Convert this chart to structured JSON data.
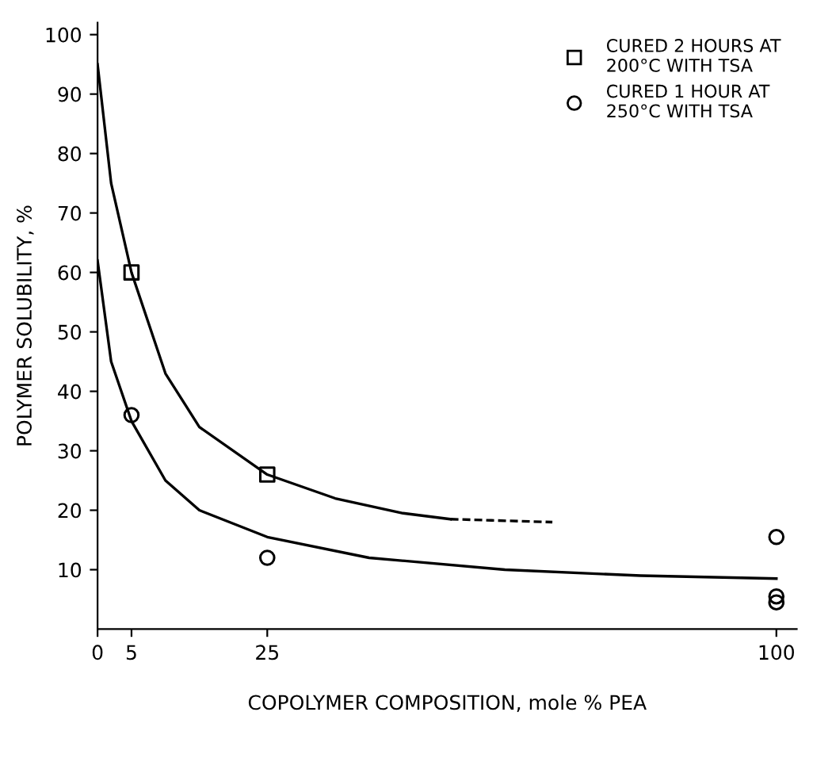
{
  "chart_data": {
    "type": "scatter",
    "xlabel": "COPOLYMER COMPOSITION, mole % PEA",
    "ylabel": "POLYMER SOLUBILITY, %",
    "xlim": [
      0,
      103
    ],
    "ylim": [
      0,
      102
    ],
    "xticks": [
      0,
      5,
      25,
      100
    ],
    "yticks": [
      10,
      20,
      30,
      40,
      50,
      60,
      70,
      80,
      90,
      100
    ],
    "grid": false,
    "legend": "top right",
    "series": [
      {
        "name": "CURED 2 HOURS AT\n200°C WITH TSA",
        "marker": "square",
        "color": "#000000",
        "x": [
          5,
          25
        ],
        "values": [
          60,
          26
        ]
      },
      {
        "name": "CURED 1 HOUR AT\n250°C WITH TSA",
        "marker": "circle",
        "color": "#000000",
        "x": [
          5,
          25,
          100,
          100,
          100
        ],
        "values": [
          36,
          12,
          15.5,
          5.5,
          4.5
        ]
      },
      {
        "type": "line",
        "marker": "none",
        "line_style": "solid",
        "color": "#000000",
        "x": [
          0,
          2,
          5,
          10,
          15,
          25,
          35,
          45,
          52
        ],
        "values": [
          95,
          75,
          60,
          43,
          34,
          26,
          22,
          19.5,
          18.5
        ]
      },
      {
        "type": "line",
        "marker": "none",
        "line_style": "dashed",
        "color": "#000000",
        "x": [
          52,
          58,
          67
        ],
        "values": [
          18.5,
          18.3,
          18
        ]
      },
      {
        "type": "line",
        "marker": "none",
        "line_style": "solid",
        "color": "#000000",
        "x": [
          0,
          2,
          5,
          10,
          15,
          25,
          40,
          60,
          80,
          100
        ],
        "values": [
          62,
          45,
          35,
          25,
          20,
          15.5,
          12,
          10,
          9,
          8.5
        ]
      }
    ]
  }
}
